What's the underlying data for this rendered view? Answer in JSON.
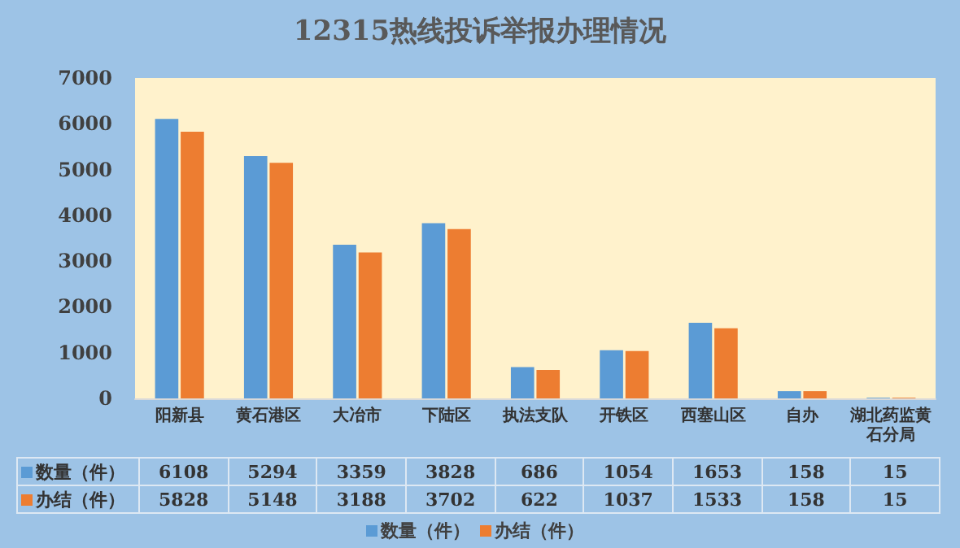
{
  "chart_data": {
    "type": "bar",
    "title": "12315热线投诉举报办理情况",
    "categories": [
      "阳新县",
      "黄石港区",
      "大冶市",
      "下陆区",
      "执法支队",
      "开铁区",
      "西塞山区",
      "自办",
      "湖北药监黄石分局"
    ],
    "series": [
      {
        "name": "数量（件）",
        "color": "#5b9bd5",
        "values": [
          6108,
          5294,
          3359,
          3828,
          686,
          1054,
          1653,
          158,
          15
        ]
      },
      {
        "name": "办结（件）",
        "color": "#ed7d31",
        "values": [
          5828,
          5148,
          3188,
          3702,
          622,
          1037,
          1533,
          158,
          15
        ]
      }
    ],
    "ylim": [
      0,
      7000
    ],
    "yticks": [
      0,
      1000,
      2000,
      3000,
      4000,
      5000,
      6000,
      7000
    ],
    "grid": false,
    "legend": "bottom",
    "data_labels": true
  }
}
